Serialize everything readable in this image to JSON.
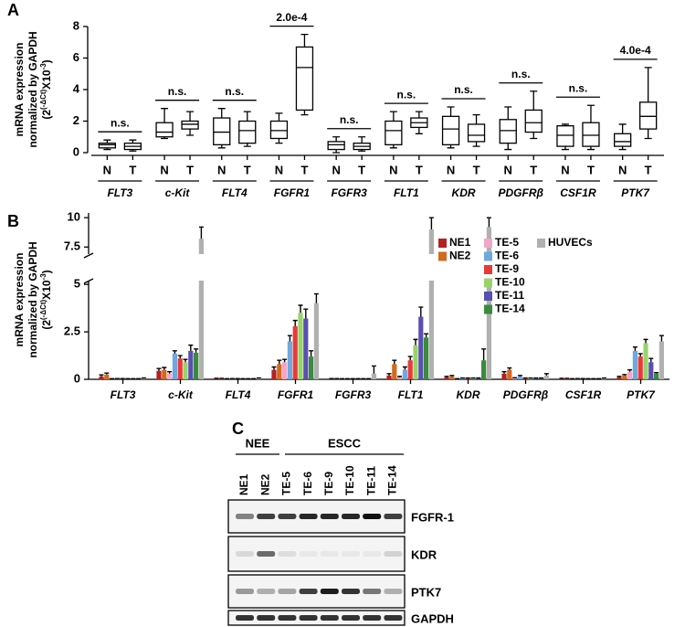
{
  "chart_data": [
    {
      "type": "box",
      "panel": "A",
      "ylabel": [
        "mRNA expression",
        "normalized by GAPDH"
      ],
      "ylabel_formula": [
        "(2",
        "(-ΔCt)",
        "X10",
        "-3",
        ")"
      ],
      "categories": [
        "FLT3",
        "c-Kit",
        "FLT4",
        "FGFR1",
        "FGFR3",
        "FLT1",
        "KDR",
        "PDGFRβ",
        "CSF1R",
        "PTK7"
      ],
      "series": [
        {
          "name": "N",
          "color": "#000000",
          "values": [
            [
              0.2,
              0.3,
              0.5,
              0.6,
              0.8
            ],
            [
              0.9,
              1.0,
              1.3,
              1.9,
              2.8
            ],
            [
              0.3,
              0.5,
              1.3,
              2.2,
              2.8
            ],
            [
              0.6,
              0.9,
              1.4,
              2.0,
              2.5
            ],
            [
              0.0,
              0.2,
              0.5,
              0.7,
              1.0
            ],
            [
              0.3,
              0.5,
              1.4,
              2.0,
              2.6
            ],
            [
              0.3,
              0.5,
              1.5,
              2.3,
              2.9
            ],
            [
              0.2,
              0.6,
              1.4,
              2.1,
              2.9
            ],
            [
              0.2,
              0.4,
              1.1,
              1.7,
              1.8
            ],
            [
              0.2,
              0.4,
              0.7,
              1.2,
              1.8
            ]
          ]
        },
        {
          "name": "T",
          "color": "#000000",
          "values": [
            [
              0.1,
              0.2,
              0.4,
              0.6,
              0.8
            ],
            [
              1.1,
              1.5,
              1.8,
              2.0,
              2.6
            ],
            [
              0.4,
              0.6,
              1.4,
              2.0,
              2.6
            ],
            [
              2.4,
              2.7,
              5.4,
              6.7,
              7.5
            ],
            [
              0.1,
              0.2,
              0.4,
              0.6,
              1.0
            ],
            [
              1.2,
              1.6,
              1.9,
              2.2,
              2.6
            ],
            [
              0.4,
              0.7,
              1.1,
              1.8,
              2.4
            ],
            [
              0.9,
              1.3,
              1.9,
              2.7,
              3.9
            ],
            [
              0.2,
              0.4,
              1.1,
              1.9,
              3.0
            ],
            [
              0.9,
              1.5,
              2.3,
              3.2,
              5.4
            ]
          ]
        }
      ],
      "annotations": [
        "n.s.",
        "n.s.",
        "n.s.",
        "2.0e-4",
        "n.s.",
        "n.s.",
        "n.s.",
        "n.s.",
        "n.s.",
        "4.0e-4"
      ],
      "ylim": [
        0,
        8
      ],
      "yticks": [
        0,
        2,
        4,
        6,
        8
      ]
    },
    {
      "type": "bar",
      "panel": "B",
      "ylabel": [
        "mRNA expression",
        "normalized by GAPDH"
      ],
      "ylabel_formula": [
        "(2",
        "(-ΔCt)",
        "X10",
        "-3",
        ")"
      ],
      "categories": [
        "FLT3",
        "c-Kit",
        "FLT4",
        "FGFR1",
        "FGFR3",
        "FLT1",
        "KDR",
        "PDGFRβ",
        "CSF1R",
        "PTK7"
      ],
      "series": [
        {
          "name": "NE1",
          "color": "#b22222",
          "values": [
            0.15,
            0.45,
            0.03,
            0.5,
            0.02,
            0.2,
            0.1,
            0.3,
            0.03,
            0.1
          ],
          "errors": [
            0.08,
            0.12,
            0.02,
            0.15,
            0.02,
            0.1,
            0.05,
            0.1,
            0.02,
            0.05
          ]
        },
        {
          "name": "NE2",
          "color": "#d2691e",
          "values": [
            0.25,
            0.5,
            0.03,
            0.8,
            0.02,
            0.8,
            0.15,
            0.5,
            0.03,
            0.2
          ],
          "errors": [
            0.08,
            0.12,
            0.02,
            0.2,
            0.02,
            0.2,
            0.05,
            0.1,
            0.02,
            0.05
          ]
        },
        {
          "name": "TE-5",
          "color": "#f4a6c9",
          "values": [
            0.02,
            0.3,
            0.02,
            0.9,
            0.02,
            0.1,
            0.02,
            0.05,
            0.02,
            0.4
          ],
          "errors": [
            0.01,
            0.1,
            0.01,
            0.15,
            0.01,
            0.05,
            0.01,
            0.03,
            0.01,
            0.1
          ]
        },
        {
          "name": "TE-6",
          "color": "#6fa8dc",
          "values": [
            0.03,
            1.35,
            0.03,
            2.0,
            0.02,
            0.5,
            0.05,
            0.15,
            0.03,
            1.5
          ],
          "errors": [
            0.01,
            0.15,
            0.01,
            0.3,
            0.01,
            0.15,
            0.02,
            0.05,
            0.01,
            0.2
          ]
        },
        {
          "name": "TE-9",
          "color": "#e8393a",
          "values": [
            0.03,
            1.1,
            0.03,
            2.8,
            0.02,
            1.0,
            0.05,
            0.05,
            0.03,
            1.2
          ],
          "errors": [
            0.01,
            0.15,
            0.01,
            0.3,
            0.01,
            0.2,
            0.02,
            0.02,
            0.01,
            0.15
          ]
        },
        {
          "name": "TE-10",
          "color": "#98d46b",
          "values": [
            0.02,
            0.9,
            0.02,
            3.5,
            0.02,
            1.8,
            0.05,
            0.05,
            0.02,
            1.9
          ],
          "errors": [
            0.01,
            0.15,
            0.01,
            0.4,
            0.01,
            0.3,
            0.02,
            0.02,
            0.01,
            0.2
          ]
        },
        {
          "name": "TE-11",
          "color": "#5a4fb0",
          "values": [
            0.02,
            1.5,
            0.02,
            3.2,
            0.02,
            3.3,
            0.05,
            0.05,
            0.02,
            0.9
          ],
          "errors": [
            0.01,
            0.3,
            0.01,
            0.5,
            0.01,
            0.5,
            0.02,
            0.02,
            0.01,
            0.2
          ]
        },
        {
          "name": "TE-14",
          "color": "#3a8a3f",
          "values": [
            0.02,
            1.4,
            0.02,
            1.2,
            0.02,
            2.2,
            1.0,
            0.05,
            0.02,
            0.3
          ],
          "errors": [
            0.01,
            0.2,
            0.01,
            0.3,
            0.01,
            0.2,
            0.6,
            0.02,
            0.01,
            0.05
          ]
        },
        {
          "name": "HUVECs",
          "color": "#b0b0b0",
          "values": [
            0.05,
            8.2,
            0.05,
            4.0,
            0.3,
            9.0,
            9.2,
            0.2,
            0.05,
            2.0
          ],
          "errors": [
            0.02,
            1.0,
            0.02,
            0.5,
            0.4,
            1.0,
            0.8,
            0.1,
            0.02,
            0.3
          ]
        }
      ],
      "ylim": [
        0,
        10.4
      ],
      "ybreak": [
        5.2,
        6.9
      ],
      "yticks": [
        0,
        2.5,
        5,
        7.5,
        10
      ],
      "legend": "top-right"
    }
  ],
  "blot": {
    "panel": "C",
    "groups": [
      "NEE",
      "ESCC"
    ],
    "lanes": [
      "NE1",
      "NE2",
      "TE-5",
      "TE-6",
      "TE-9",
      "TE-10",
      "TE-11",
      "TE-14"
    ],
    "rows": [
      "FGFR-1",
      "KDR",
      "PTK7",
      "GAPDH"
    ]
  }
}
